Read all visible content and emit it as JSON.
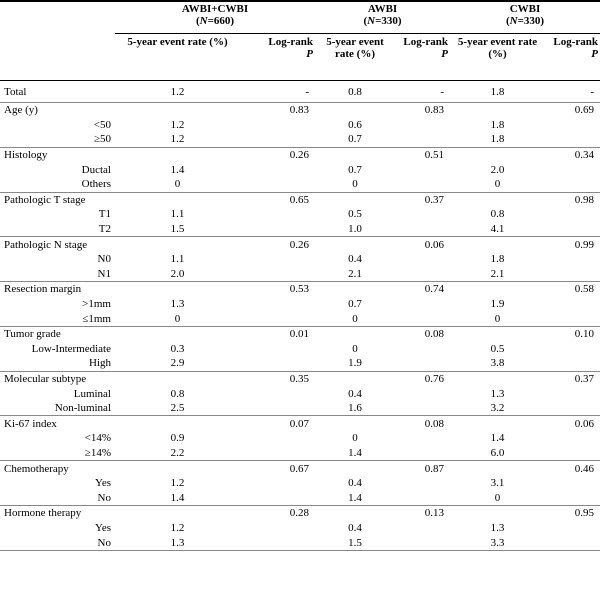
{
  "header": {
    "groups": [
      {
        "name": "AWBI+CWBI",
        "n_parts": [
          "(",
          "N",
          "=660)"
        ]
      },
      {
        "name": "AWBI",
        "n_parts": [
          "(",
          "N",
          "=330)"
        ]
      },
      {
        "name": "CWBI",
        "n_parts": [
          "(",
          "N",
          "=330)"
        ]
      }
    ],
    "columns": [
      {
        "rate": "5-year event rate (%)",
        "p": [
          "Log-rank",
          "P"
        ]
      },
      {
        "rate": "5-year event rate (%)",
        "p": [
          "Log-rank",
          "P"
        ]
      },
      {
        "rate": "5-year event rate (%)",
        "p": [
          "Log-rank",
          "P"
        ]
      }
    ]
  },
  "total": {
    "label": "Total",
    "values": [
      "1.2",
      "-",
      "0.8",
      "-",
      "1.8",
      "-"
    ]
  },
  "sections": [
    {
      "label": "Age (y)",
      "p": [
        "0.83",
        "0.83",
        "0.69"
      ],
      "rows": [
        {
          "label": "<50",
          "rates": [
            "1.2",
            "0.6",
            "1.8"
          ]
        },
        {
          "label": "≥50",
          "rates": [
            "1.2",
            "0.7",
            "1.8"
          ]
        }
      ]
    },
    {
      "label": "Histology",
      "p": [
        "0.26",
        "0.51",
        "0.34"
      ],
      "rows": [
        {
          "label": "Ductal",
          "rates": [
            "1.4",
            "0.7",
            "2.0"
          ]
        },
        {
          "label": "Others",
          "rates": [
            "0",
            "0",
            "0"
          ]
        }
      ]
    },
    {
      "label": "Pathologic T stage",
      "p": [
        "0.65",
        "0.37",
        "0.98"
      ],
      "rows": [
        {
          "label": "T1",
          "rates": [
            "1.1",
            "0.5",
            "0.8"
          ]
        },
        {
          "label": "T2",
          "rates": [
            "1.5",
            "1.0",
            "4.1"
          ]
        }
      ]
    },
    {
      "label": "Pathologic N stage",
      "p": [
        "0.26",
        "0.06",
        "0.99"
      ],
      "rows": [
        {
          "label": "N0",
          "rates": [
            "1.1",
            "0.4",
            "1.8"
          ]
        },
        {
          "label": "N1",
          "rates": [
            "2.0",
            "2.1",
            "2.1"
          ]
        }
      ]
    },
    {
      "label": "Resection margin",
      "p": [
        "0.53",
        "0.74",
        "0.58"
      ],
      "rows": [
        {
          "label": ">1mm",
          "rates": [
            "1.3",
            "0.7",
            "1.9"
          ]
        },
        {
          "label": "≤1mm",
          "rates": [
            "0",
            "0",
            "0"
          ]
        }
      ]
    },
    {
      "label": "Tumor grade",
      "p": [
        "0.01",
        "0.08",
        "0.10"
      ],
      "rows": [
        {
          "label": "Low-Intermediate",
          "rates": [
            "0.3",
            "0",
            "0.5"
          ]
        },
        {
          "label": "High",
          "rates": [
            "2.9",
            "1.9",
            "3.8"
          ]
        }
      ]
    },
    {
      "label": "Molecular subtype",
      "p": [
        "0.35",
        "0.76",
        "0.37"
      ],
      "rows": [
        {
          "label": "Luminal",
          "rates": [
            "0.8",
            "0.4",
            "1.3"
          ]
        },
        {
          "label": "Non-luminal",
          "rates": [
            "2.5",
            "1.6",
            "3.2"
          ]
        }
      ]
    },
    {
      "label": "Ki-67 index",
      "p": [
        "0.07",
        "0.08",
        "0.06"
      ],
      "rows": [
        {
          "label": "<14%",
          "rates": [
            "0.9",
            "0",
            "1.4"
          ]
        },
        {
          "label": "≥14%",
          "rates": [
            "2.2",
            "1.4",
            "6.0"
          ]
        }
      ]
    },
    {
      "label": "Chemotherapy",
      "p": [
        "0.67",
        "0.87",
        "0.46"
      ],
      "rows": [
        {
          "label": "Yes",
          "rates": [
            "1.2",
            "0.4",
            "3.1"
          ]
        },
        {
          "label": "No",
          "rates": [
            "1.4",
            "1.4",
            "0"
          ]
        }
      ]
    },
    {
      "label": "Hormone therapy",
      "p": [
        "0.28",
        "0.13",
        "0.95"
      ],
      "rows": [
        {
          "label": "Yes",
          "rates": [
            "1.2",
            "0.4",
            "1.3"
          ]
        },
        {
          "label": "No",
          "rates": [
            "1.3",
            "1.5",
            "3.3"
          ]
        }
      ]
    }
  ]
}
